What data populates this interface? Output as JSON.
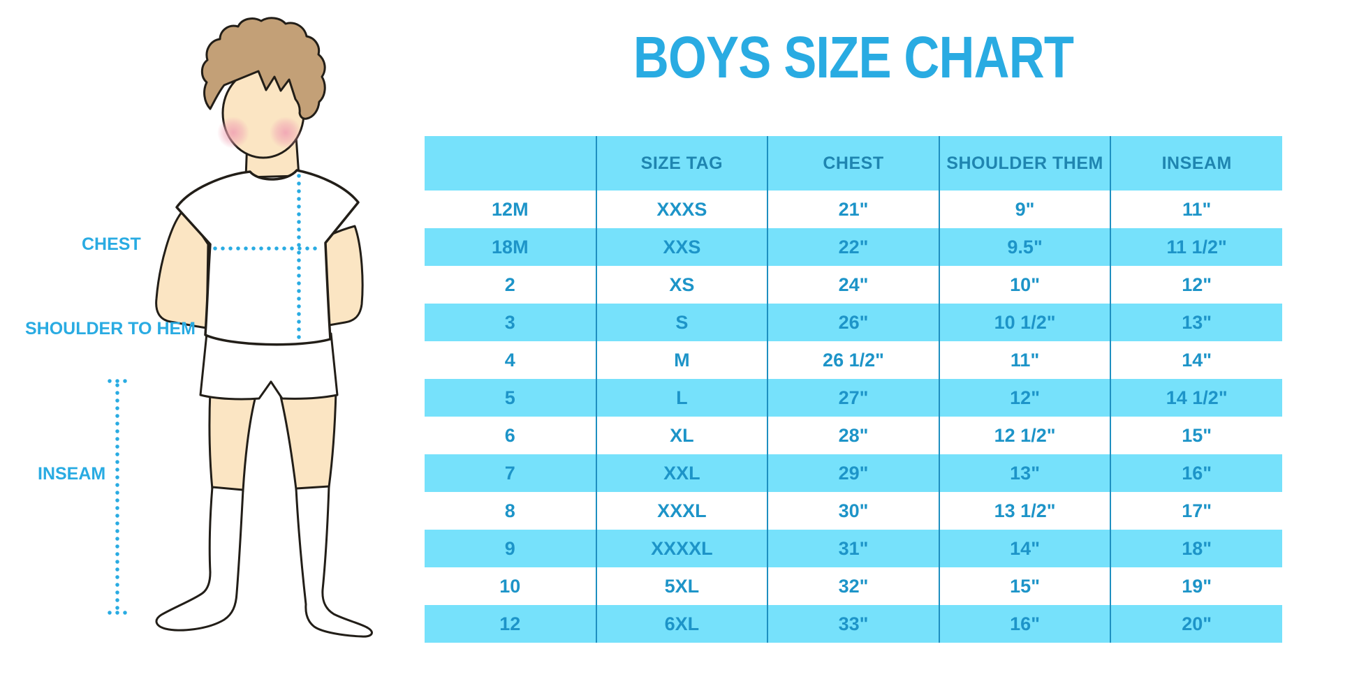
{
  "title": "BOYS SIZE CHART",
  "figure": {
    "chest_label": "CHEST",
    "shoulder_to_hem_label": "SHOULDER TO HEM",
    "inseam_label": "INSEAM"
  },
  "table": {
    "headers": [
      "",
      "SIZE TAG",
      "CHEST",
      "SHOULDER THEM",
      "INSEAM"
    ],
    "rows": [
      [
        "12M",
        "XXXS",
        "21\"",
        "9\"",
        "11\""
      ],
      [
        "18M",
        "XXS",
        "22\"",
        "9.5\"",
        "11 1/2\""
      ],
      [
        "2",
        "XS",
        "24\"",
        "10\"",
        "12\""
      ],
      [
        "3",
        "S",
        "26\"",
        "10 1/2\"",
        "13\""
      ],
      [
        "4",
        "M",
        "26 1/2\"",
        "11\"",
        "14\""
      ],
      [
        "5",
        "L",
        "27\"",
        "12\"",
        "14 1/2\""
      ],
      [
        "6",
        "XL",
        "28\"",
        "12 1/2\"",
        "15\""
      ],
      [
        "7",
        "XXL",
        "29\"",
        "13\"",
        "16\""
      ],
      [
        "8",
        "XXXL",
        "30\"",
        "13 1/2\"",
        "17\""
      ],
      [
        "9",
        "XXXXL",
        "31\"",
        "14\"",
        "18\""
      ],
      [
        "10",
        "5XL",
        "32\"",
        "15\"",
        "19\""
      ],
      [
        "12",
        "6XL",
        "33\"",
        "16\"",
        "20\""
      ]
    ]
  },
  "colors": {
    "accent_blue": "#29ABE2",
    "table_stripe": "#76E1FB",
    "table_text": "#1D94C8",
    "divider_line": "#1E8FC0"
  }
}
